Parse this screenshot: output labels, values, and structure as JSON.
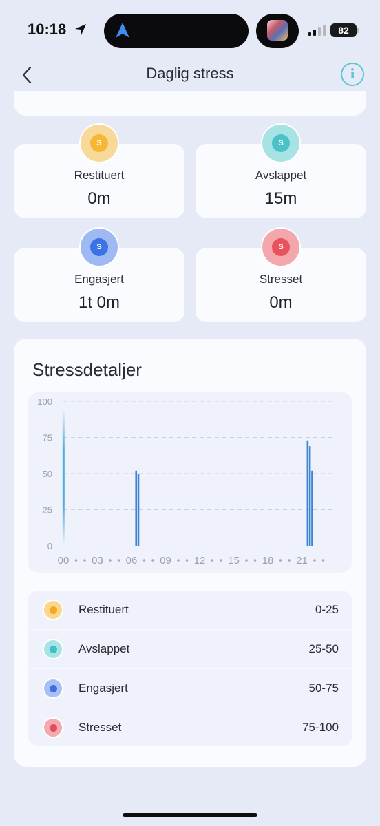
{
  "status": {
    "time": "10:18",
    "battery": "82"
  },
  "header": {
    "title": "Daglig stress",
    "info": "i"
  },
  "stats": [
    {
      "label": "Restituert",
      "value": "0m",
      "icon_letter": "S",
      "color": "#f7b733",
      "ring": "#f9d99a"
    },
    {
      "label": "Avslappet",
      "value": "15m",
      "icon_letter": "S",
      "color": "#4ac2c8",
      "ring": "#a8e3e4"
    },
    {
      "label": "Engasjert",
      "value": "1t 0m",
      "icon_letter": "S",
      "color": "#3a73e6",
      "ring": "#9fbaf3"
    },
    {
      "label": "Stresset",
      "value": "0m",
      "icon_letter": "S",
      "color": "#e9525c",
      "ring": "#f3a7ac"
    }
  ],
  "details": {
    "title": "Stressdetaljer",
    "legend": [
      {
        "name": "Restituert",
        "range": "0-25",
        "color": "#f7a823",
        "glow": "#fcd68a"
      },
      {
        "name": "Avslappet",
        "range": "25-50",
        "color": "#3fbfc6",
        "glow": "#a9e3e5"
      },
      {
        "name": "Engasjert",
        "range": "50-75",
        "color": "#3d6fe8",
        "glow": "#a9c0f4"
      },
      {
        "name": "Stresset",
        "range": "75-100",
        "color": "#e44c58",
        "glow": "#f4a9ae"
      }
    ]
  },
  "chart_data": {
    "type": "bar",
    "y_ticks": [
      "100",
      "75",
      "50",
      "25",
      "0"
    ],
    "ylim": [
      0,
      100
    ],
    "x_ticks": [
      "00",
      "03",
      "06",
      "09",
      "12",
      "15",
      "18",
      "21"
    ],
    "xlim": [
      0,
      24
    ],
    "grid": true,
    "bar_color": "#3e86d4",
    "bars": [
      {
        "x": 0.0,
        "value": 95,
        "gradient": true
      },
      {
        "x": 6.4,
        "value": 52
      },
      {
        "x": 6.6,
        "value": 50
      },
      {
        "x": 21.5,
        "value": 73
      },
      {
        "x": 21.7,
        "value": 69
      },
      {
        "x": 21.9,
        "value": 52
      }
    ]
  }
}
